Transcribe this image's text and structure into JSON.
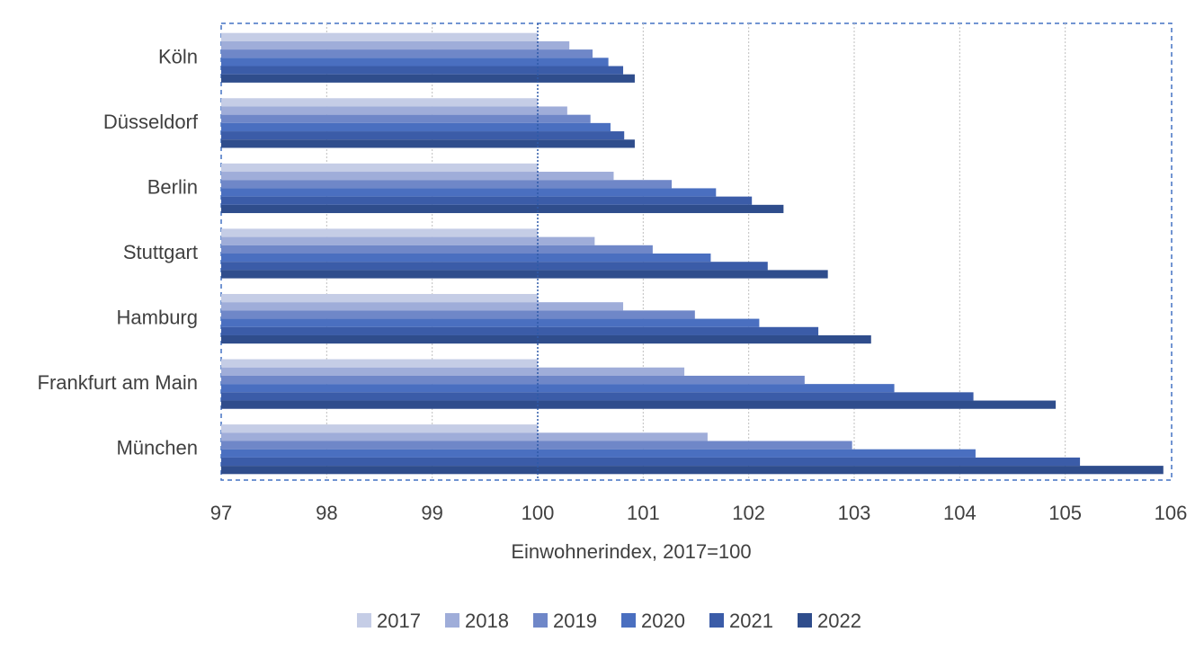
{
  "chart_data": {
    "type": "bar",
    "orientation": "horizontal",
    "xlabel": "Einwohnerindex, 2017=100",
    "xlim": [
      97,
      106
    ],
    "x_ticks": [
      97,
      98,
      99,
      100,
      101,
      102,
      103,
      104,
      105,
      106
    ],
    "x_tick_labels": [
      "97",
      "98",
      "99",
      "100",
      "101",
      "102",
      "103",
      "104",
      "105",
      "106"
    ],
    "reference_line": 100,
    "grid": "vertical dotted",
    "legend_position": "bottom",
    "categories": [
      "Köln",
      "Düsseldorf",
      "Berlin",
      "Stuttgart",
      "Hamburg",
      "Frankfurt am Main",
      "München"
    ],
    "series": [
      {
        "name": "2017",
        "color": "#c5cde6",
        "values": [
          100,
          100,
          100,
          100,
          100,
          100,
          100
        ]
      },
      {
        "name": "2018",
        "color": "#9fadd9",
        "values": [
          100.3,
          100.28,
          100.72,
          100.54,
          100.81,
          101.39,
          101.61
        ]
      },
      {
        "name": "2019",
        "color": "#6f87c8",
        "values": [
          100.52,
          100.5,
          101.27,
          101.09,
          101.49,
          102.53,
          102.98
        ]
      },
      {
        "name": "2020",
        "color": "#4a6fc0",
        "values": [
          100.67,
          100.69,
          101.69,
          101.64,
          102.1,
          103.38,
          104.15
        ]
      },
      {
        "name": "2021",
        "color": "#3b5ca8",
        "values": [
          100.81,
          100.82,
          102.03,
          102.18,
          102.66,
          104.13,
          105.14
        ]
      },
      {
        "name": "2022",
        "color": "#2f4d8c",
        "values": [
          100.92,
          100.92,
          102.33,
          102.75,
          103.16,
          104.91,
          105.93
        ]
      }
    ]
  }
}
